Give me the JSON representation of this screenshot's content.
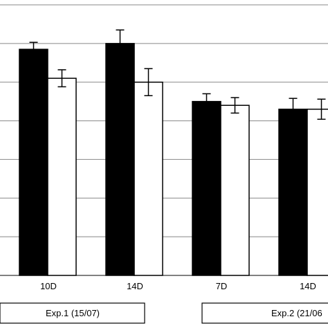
{
  "chart_data": {
    "type": "bar",
    "categories": [
      "10D",
      "14D",
      "7D",
      "14D"
    ],
    "series": [
      {
        "color": "#000000",
        "values": [
          5.85,
          6.0,
          4.5,
          4.3
        ],
        "errors": [
          0.18,
          0.35,
          0.2,
          0.28
        ]
      },
      {
        "color": "#ffffff",
        "values": [
          5.1,
          5.0,
          4.4,
          4.3
        ],
        "errors": [
          0.22,
          0.35,
          0.2,
          0.26
        ]
      }
    ],
    "groups": [
      {
        "label": "Exp.1 (15/07)",
        "categories": [
          0,
          1
        ]
      },
      {
        "label": "Exp.2 (21/06",
        "categories": [
          2,
          3
        ]
      }
    ],
    "ylim": [
      0,
      7
    ],
    "grid": true
  }
}
